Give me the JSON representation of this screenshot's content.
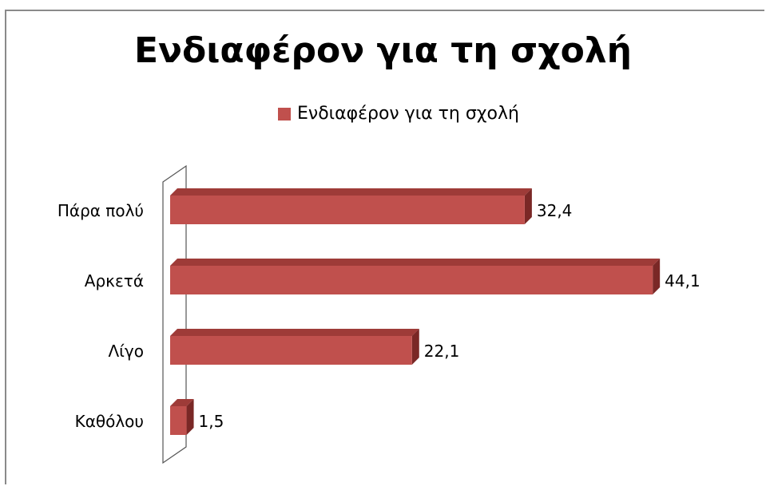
{
  "chart_data": {
    "type": "bar",
    "orientation": "horizontal",
    "title": "Ενδιαφέρον για τη σχολή",
    "categories": [
      "Πάρα πολύ",
      "Αρκετά",
      "Λίγο",
      "Καθόλου"
    ],
    "series": [
      {
        "name": "Ενδιαφέρον για τη σχολή",
        "values": [
          32.4,
          44.1,
          22.1,
          1.5
        ]
      }
    ],
    "value_labels": [
      "32,4",
      "44,1",
      "22,1",
      "1,5"
    ],
    "xlim": [
      0,
      45
    ],
    "legend_position": "top",
    "grid": false,
    "bar_style": "3d",
    "color": "#c0504d"
  }
}
